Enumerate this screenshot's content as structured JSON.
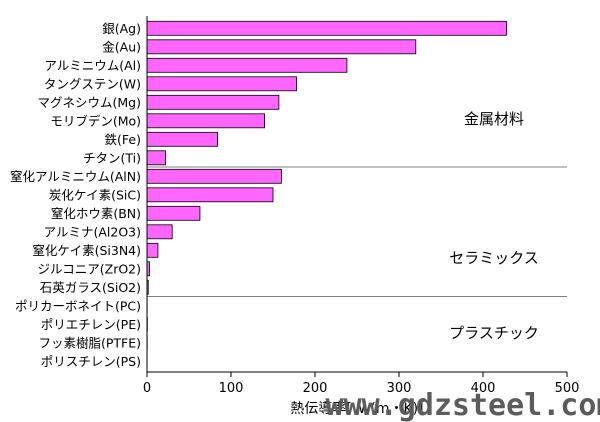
{
  "chart_data": {
    "type": "bar",
    "orientation": "horizontal",
    "categories": [
      "銀(Ag)",
      "金(Au)",
      "アルミニウム(Al)",
      "タングステン(W)",
      "マグネシウム(Mg)",
      "モリブデン(Mo)",
      "鉄(Fe)",
      "チタン(Ti)",
      "窒化アルミニウム(AlN)",
      "炭化ケイ素(SiC)",
      "窒化ホウ素(BN)",
      "アルミナ(Al2O3)",
      "窒化ケイ素(Si3N4)",
      "ジルコニア(ZrO2)",
      "石英ガラス(SiO2)",
      "ポリカーボネイト(PC)",
      "ポリエチレン(PE)",
      "フッ素樹脂(PTFE)",
      "ポリスチレン(PS)"
    ],
    "values": [
      428,
      320,
      238,
      178,
      157,
      140,
      84,
      22,
      160,
      150,
      63,
      30,
      13,
      3,
      1.5,
      0.2,
      0.4,
      0.25,
      0.1
    ],
    "xlim": [
      0,
      500
    ],
    "xticks": [
      "0",
      "100",
      "200",
      "300",
      "400",
      "500"
    ],
    "xlabel": "熱伝導率[W/(m・K)]",
    "groups": [
      "金属材料",
      "セラミックス",
      "プラスチック"
    ],
    "bar_color": "#ff66ff",
    "bar_edge_color": "#000000"
  },
  "watermark": "www.gdzsteel.com"
}
